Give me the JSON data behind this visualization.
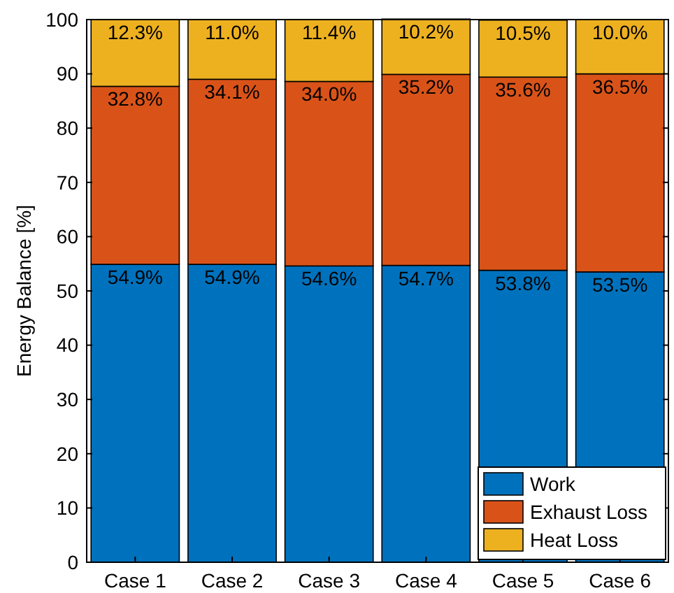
{
  "chart_data": {
    "type": "bar",
    "stacked": true,
    "ylabel": "Energy Balance [%]",
    "categories": [
      "Case 1",
      "Case 2",
      "Case 3",
      "Case 4",
      "Case 5",
      "Case 6"
    ],
    "series": [
      {
        "name": "Work",
        "color": "#0072bd",
        "values": [
          54.9,
          54.9,
          54.6,
          54.7,
          53.8,
          53.5
        ],
        "value_labels": [
          "54.9%",
          "54.9%",
          "54.6%",
          "54.7%",
          "53.8%",
          "53.5%"
        ]
      },
      {
        "name": "Exhaust Loss",
        "color": "#d95319",
        "values": [
          32.8,
          34.1,
          34.0,
          35.2,
          35.6,
          36.5
        ],
        "value_labels": [
          "32.8%",
          "34.1%",
          "34.0%",
          "35.2%",
          "35.6%",
          "36.5%"
        ]
      },
      {
        "name": "Heat Loss",
        "color": "#edb120",
        "values": [
          12.3,
          11.0,
          11.4,
          10.2,
          10.5,
          10.0
        ],
        "value_labels": [
          "12.3%",
          "11.0%",
          "11.4%",
          "10.2%",
          "10.5%",
          "10.0%"
        ]
      }
    ],
    "ylim": [
      0,
      100
    ],
    "yticks": [
      0,
      10,
      20,
      30,
      40,
      50,
      60,
      70,
      80,
      90,
      100
    ],
    "legend": "bottom right",
    "grid": false
  }
}
